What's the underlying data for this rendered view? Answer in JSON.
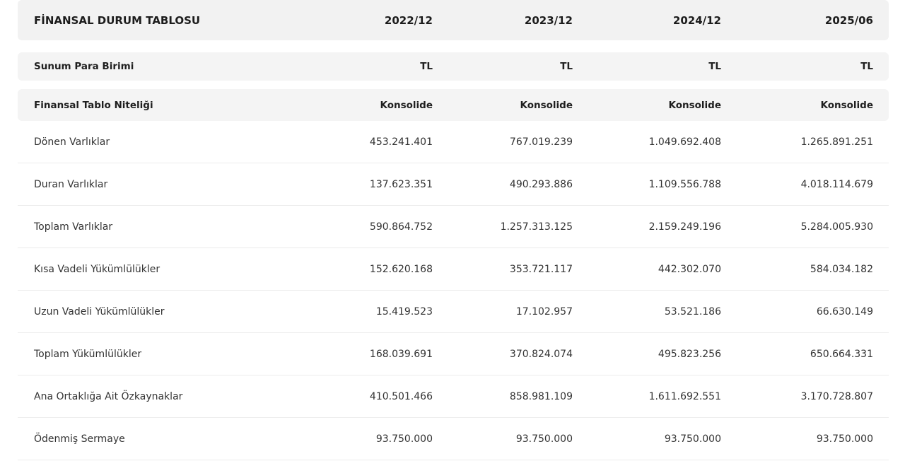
{
  "table": {
    "title": "FİNANSAL DURUM TABLOSU",
    "periods": [
      "2022/12",
      "2023/12",
      "2024/12",
      "2025/06"
    ],
    "meta_rows": [
      {
        "label": "Sunum Para Birimi",
        "values": [
          "TL",
          "TL",
          "TL",
          "TL"
        ]
      },
      {
        "label": "Finansal Tablo Niteliği",
        "values": [
          "Konsolide",
          "Konsolide",
          "Konsolide",
          "Konsolide"
        ]
      }
    ],
    "rows": [
      {
        "label": "Dönen Varlıklar",
        "values": [
          "453.241.401",
          "767.019.239",
          "1.049.692.408",
          "1.265.891.251"
        ]
      },
      {
        "label": "Duran Varlıklar",
        "values": [
          "137.623.351",
          "490.293.886",
          "1.109.556.788",
          "4.018.114.679"
        ]
      },
      {
        "label": "Toplam Varlıklar",
        "values": [
          "590.864.752",
          "1.257.313.125",
          "2.159.249.196",
          "5.284.005.930"
        ]
      },
      {
        "label": "Kısa Vadeli Yükümlülükler",
        "values": [
          "152.620.168",
          "353.721.117",
          "442.302.070",
          "584.034.182"
        ]
      },
      {
        "label": "Uzun Vadeli Yükümlülükler",
        "values": [
          "15.419.523",
          "17.102.957",
          "53.521.186",
          "66.630.149"
        ]
      },
      {
        "label": "Toplam Yükümlülükler",
        "values": [
          "168.039.691",
          "370.824.074",
          "495.823.256",
          "650.664.331"
        ]
      },
      {
        "label": "Ana Ortaklığa Ait Özkaynaklar",
        "values": [
          "410.501.466",
          "858.981.109",
          "1.611.692.551",
          "3.170.728.807"
        ]
      },
      {
        "label": "Ödenmiş Sermaye",
        "values": [
          "93.750.000",
          "93.750.000",
          "93.750.000",
          "93.750.000"
        ]
      }
    ]
  }
}
